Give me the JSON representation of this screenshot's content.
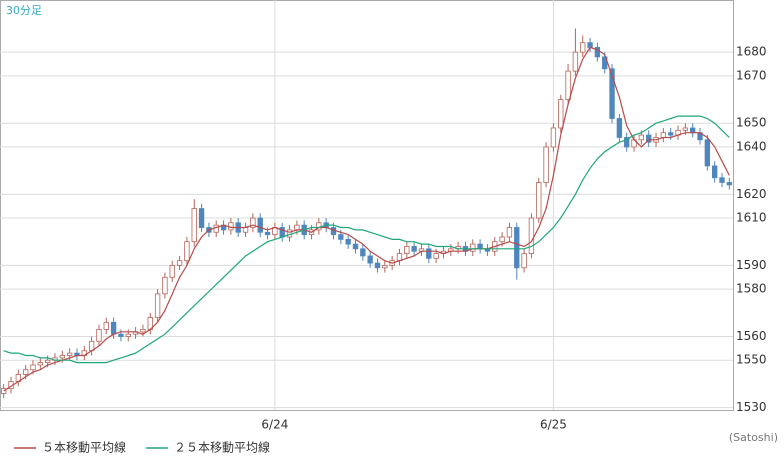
{
  "chart_data": {
    "type": "candlestick",
    "title": "30分足",
    "credit": "(Satoshi)",
    "up_color": "#b5655a",
    "down_color": "#4f86bd",
    "open": [
      1536,
      1538,
      1541,
      1544,
      1546,
      1548,
      1549,
      1550,
      1551,
      1552,
      1553,
      1552,
      1554,
      1558,
      1563,
      1566,
      1561,
      1560,
      1561,
      1562,
      1563,
      1568,
      1578,
      1585,
      1590,
      1592,
      1600,
      1614,
      1606,
      1604,
      1607,
      1605,
      1608,
      1604,
      1606,
      1610,
      1604,
      1603,
      1606,
      1602,
      1605,
      1607,
      1603,
      1605,
      1608,
      1606,
      1603,
      1601,
      1599,
      1597,
      1594,
      1591,
      1589,
      1590,
      1592,
      1595,
      1598,
      1596,
      1597,
      1593,
      1595,
      1596,
      1597,
      1598,
      1596,
      1599,
      1597,
      1596,
      1600,
      1602,
      1606,
      1589,
      1595,
      1610,
      1625,
      1640,
      1648,
      1660,
      1672,
      1680,
      1684,
      1682,
      1678,
      1673,
      1652,
      1644,
      1640,
      1643,
      1645,
      1642,
      1644,
      1646,
      1645,
      1647,
      1648,
      1646,
      1643,
      1632,
      1627,
      1625
    ],
    "high": [
      1540,
      1543,
      1546,
      1548,
      1550,
      1551,
      1552,
      1553,
      1554,
      1555,
      1555,
      1556,
      1560,
      1565,
      1568,
      1568,
      1563,
      1563,
      1564,
      1565,
      1570,
      1580,
      1587,
      1592,
      1594,
      1602,
      1618,
      1616,
      1608,
      1609,
      1609,
      1610,
      1610,
      1608,
      1612,
      1612,
      1606,
      1608,
      1608,
      1607,
      1609,
      1609,
      1607,
      1610,
      1610,
      1608,
      1605,
      1603,
      1601,
      1599,
      1596,
      1593,
      1592,
      1594,
      1597,
      1600,
      1600,
      1599,
      1599,
      1597,
      1598,
      1599,
      1600,
      1600,
      1601,
      1601,
      1599,
      1602,
      1604,
      1608,
      1608,
      1597,
      1612,
      1627,
      1642,
      1650,
      1662,
      1675,
      1690,
      1687,
      1686,
      1684,
      1680,
      1675,
      1654,
      1646,
      1645,
      1647,
      1647,
      1646,
      1648,
      1648,
      1649,
      1650,
      1650,
      1648,
      1645,
      1634,
      1629,
      1627
    ],
    "low": [
      1534,
      1536,
      1539,
      1542,
      1544,
      1546,
      1547,
      1548,
      1549,
      1550,
      1550,
      1550,
      1552,
      1556,
      1561,
      1559,
      1558,
      1558,
      1559,
      1560,
      1561,
      1566,
      1576,
      1583,
      1588,
      1590,
      1598,
      1604,
      1602,
      1602,
      1603,
      1603,
      1602,
      1602,
      1604,
      1602,
      1601,
      1601,
      1600,
      1600,
      1603,
      1601,
      1601,
      1603,
      1604,
      1601,
      1599,
      1597,
      1595,
      1592,
      1589,
      1587,
      1587,
      1588,
      1590,
      1593,
      1594,
      1594,
      1591,
      1591,
      1593,
      1594,
      1595,
      1594,
      1594,
      1595,
      1594,
      1594,
      1598,
      1600,
      1584,
      1587,
      1593,
      1608,
      1623,
      1638,
      1646,
      1658,
      1670,
      1678,
      1680,
      1676,
      1671,
      1650,
      1642,
      1638,
      1638,
      1641,
      1640,
      1640,
      1642,
      1643,
      1643,
      1645,
      1644,
      1641,
      1630,
      1625,
      1623,
      1622
    ],
    "close": [
      1538,
      1541,
      1544,
      1546,
      1548,
      1549,
      1550,
      1551,
      1552,
      1553,
      1552,
      1554,
      1558,
      1563,
      1566,
      1561,
      1560,
      1561,
      1562,
      1563,
      1568,
      1578,
      1585,
      1590,
      1592,
      1600,
      1614,
      1606,
      1604,
      1607,
      1605,
      1608,
      1604,
      1606,
      1610,
      1604,
      1603,
      1606,
      1602,
      1605,
      1607,
      1603,
      1605,
      1608,
      1606,
      1603,
      1601,
      1599,
      1597,
      1594,
      1591,
      1589,
      1590,
      1592,
      1595,
      1598,
      1596,
      1597,
      1593,
      1595,
      1596,
      1597,
      1598,
      1596,
      1599,
      1597,
      1596,
      1600,
      1602,
      1606,
      1589,
      1595,
      1610,
      1625,
      1640,
      1648,
      1660,
      1672,
      1680,
      1684,
      1682,
      1678,
      1673,
      1652,
      1644,
      1640,
      1643,
      1645,
      1642,
      1644,
      1646,
      1645,
      1647,
      1648,
      1646,
      1643,
      1632,
      1627,
      1625,
      1624
    ],
    "series": [
      {
        "name": "５本移動平均線",
        "color": "#b84a4a",
        "values": [
          1537,
          1539,
          1541,
          1543,
          1545,
          1546,
          1548,
          1549,
          1550,
          1551,
          1552,
          1552,
          1554,
          1556,
          1559,
          1561,
          1562,
          1562,
          1562,
          1561,
          1563,
          1566,
          1571,
          1578,
          1585,
          1590,
          1597,
          1602,
          1605,
          1606,
          1607,
          1606,
          1606,
          1606,
          1607,
          1606,
          1605,
          1606,
          1605,
          1604,
          1605,
          1605,
          1604,
          1606,
          1606,
          1605,
          1604,
          1603,
          1601,
          1599,
          1596,
          1594,
          1592,
          1591,
          1592,
          1593,
          1594,
          1596,
          1596,
          1596,
          1595,
          1596,
          1596,
          1596,
          1597,
          1597,
          1597,
          1598,
          1599,
          1600,
          1599,
          1598,
          1600,
          1606,
          1614,
          1628,
          1645,
          1658,
          1669,
          1677,
          1682,
          1681,
          1679,
          1670,
          1661,
          1649,
          1643,
          1640,
          1643,
          1643,
          1644,
          1644,
          1645,
          1646,
          1646,
          1646,
          1644,
          1640,
          1634,
          1628
        ]
      },
      {
        "name": "２５本移動平均線",
        "color": "#1fa67a",
        "values": [
          1554,
          1553,
          1553,
          1552,
          1552,
          1551,
          1551,
          1550,
          1550,
          1550,
          1549,
          1549,
          1549,
          1549,
          1549,
          1550,
          1551,
          1552,
          1553,
          1555,
          1557,
          1559,
          1561,
          1564,
          1567,
          1570,
          1573,
          1576,
          1579,
          1582,
          1585,
          1588,
          1591,
          1594,
          1596,
          1598,
          1600,
          1601,
          1602,
          1603,
          1604,
          1605,
          1606,
          1606,
          1607,
          1607,
          1606,
          1606,
          1605,
          1605,
          1604,
          1603,
          1602,
          1601,
          1601,
          1600,
          1600,
          1599,
          1599,
          1598,
          1598,
          1598,
          1597,
          1597,
          1597,
          1597,
          1597,
          1597,
          1597,
          1597,
          1597,
          1597,
          1598,
          1600,
          1603,
          1606,
          1610,
          1615,
          1620,
          1626,
          1631,
          1635,
          1638,
          1640,
          1642,
          1643,
          1645,
          1646,
          1648,
          1650,
          1651,
          1652,
          1653,
          1653,
          1653,
          1653,
          1652,
          1650,
          1647,
          1644
        ]
      }
    ],
    "xlim": [
      -0.5,
      99.5
    ],
    "xticks": [
      {
        "value": 37,
        "label": "6/24"
      },
      {
        "value": 75,
        "label": "6/25"
      }
    ],
    "ylim": [
      1529,
      1702
    ],
    "yticks": [
      1530,
      1550,
      1560,
      1580,
      1590,
      1610,
      1620,
      1640,
      1650,
      1670,
      1680
    ],
    "grid": true
  }
}
